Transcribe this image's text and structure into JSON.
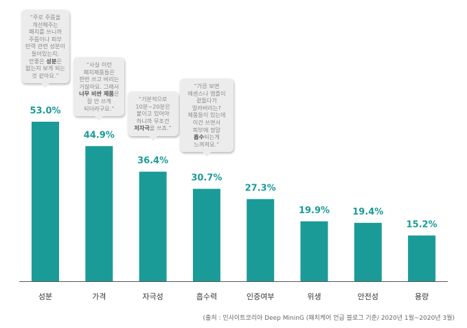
{
  "chart_data": {
    "type": "bar",
    "categories": [
      "성분",
      "가격",
      "자극성",
      "흡수력",
      "인증여부",
      "위생",
      "안전성",
      "용량"
    ],
    "values": [
      53.0,
      44.9,
      36.4,
      30.7,
      27.3,
      19.9,
      19.4,
      15.2
    ],
    "value_labels": [
      "53.0%",
      "44.9%",
      "36.4%",
      "30.7%",
      "27.3%",
      "19.9%",
      "19.4%",
      "15.2%"
    ],
    "title": "",
    "xlabel": "",
    "ylabel": "",
    "ylim": [
      0,
      53.0
    ],
    "grid": false,
    "bar_color": "#1a9b98",
    "label_color": "#1a9b98",
    "axis_color": "#555555"
  },
  "callouts": [
    {
      "category": "성분",
      "parts": [
        {
          "t": "“주로 주름을\n개선해주는\n패치를 쓰니까\n주름이나 피부\n탄력 관련 성분이\n들어있는지,\n안좋은 "
        },
        {
          "t": "성분",
          "b": true
        },
        {
          "t": "은\n없는지 보게 되는\n것 같아요.”"
        }
      ]
    },
    {
      "category": "가격",
      "parts": [
        {
          "t": "“사실 이런\n패치제품들은\n한번 쓰고 버리는\n거잖아요. 그래서\n"
        },
        {
          "t": "너무 비싼 제품",
          "b": true
        },
        {
          "t": "은\n잘 안 쓰게\n되더라구요.”"
        }
      ]
    },
    {
      "category": "자극성",
      "parts": [
        {
          "t": "“기본적으로\n10분~20분은\n붙이고 있어야\n하니까 무조건\n"
        },
        {
          "t": "저자극",
          "b": true
        },
        {
          "t": "을 쓰죠.”"
        }
      ]
    },
    {
      "category": "흡수력",
      "parts": [
        {
          "t": "“가끔 보면\n에센스나 앰플이\n겉돌다가\n말라버리는?\n제품들이 있는데\n이건 쓰면서\n피부에 정말\n"
        },
        {
          "t": "흡수",
          "b": true
        },
        {
          "t": "되는게\n느껴져요.”"
        }
      ]
    }
  ],
  "source": "(출처 : 인사이트코리아 Deep MininG (패치케어 언급 블로그 기준/ 2020년 1월~2020년 3월)"
}
